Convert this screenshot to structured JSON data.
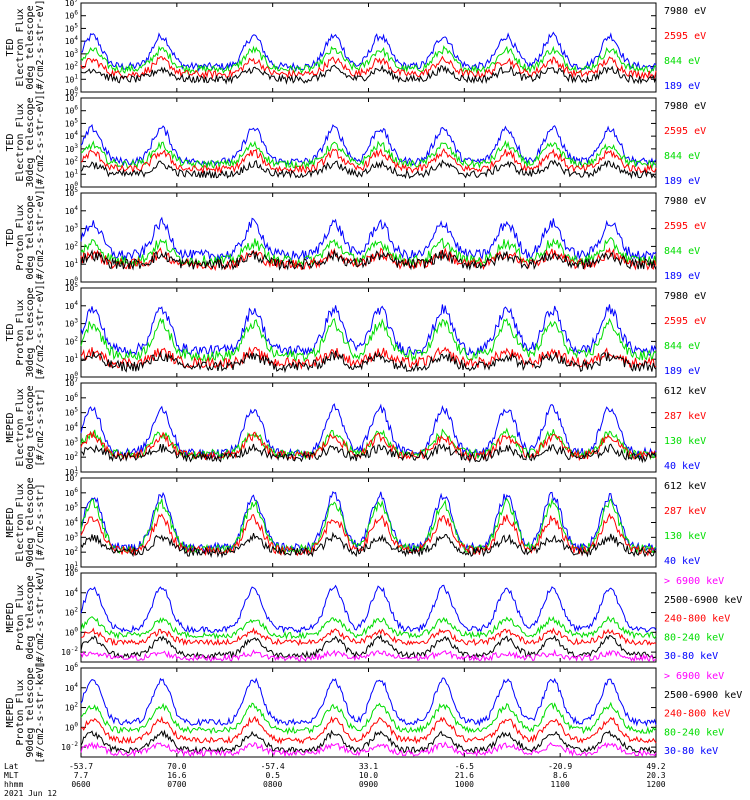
{
  "chart_data": {
    "type": "line",
    "date_label": "2021 Jun 12",
    "x_axis": {
      "row_labels": [
        "Lat",
        "MLT",
        "hhmm"
      ],
      "ticks": [
        {
          "lat": "-53.7",
          "mlt": "7.7",
          "hhmm": "0600"
        },
        {
          "lat": "70.0",
          "mlt": "16.6",
          "hhmm": "0700"
        },
        {
          "lat": "-57.4",
          "mlt": "0.5",
          "hhmm": "0800"
        },
        {
          "lat": "33.1",
          "mlt": "10.0",
          "hhmm": "0900"
        },
        {
          "lat": "-6.5",
          "mlt": "21.6",
          "hhmm": "1000"
        },
        {
          "lat": "-20.9",
          "mlt": "8.6",
          "hhmm": "1100"
        },
        {
          "lat": "49.2",
          "mlt": "20.3",
          "hhmm": "1200"
        }
      ]
    },
    "panels": [
      {
        "ylabel": [
          "TED",
          "Electron Flux",
          "0deg telescope",
          "[#/cm2-s-str-eV]"
        ],
        "ymin_exp": 0,
        "ymax_exp": 7,
        "ticks": [
          "10^0",
          "10^1",
          "10^2",
          "10^3",
          "10^4",
          "10^5",
          "10^6",
          "10^7"
        ],
        "legend": [
          {
            "text": "7980 eV",
            "color": "#000000"
          },
          {
            "text": "2595 eV",
            "color": "#ff0000"
          },
          {
            "text": "844 eV",
            "color": "#00dd00"
          },
          {
            "text": "189 eV",
            "color": "#0000ff"
          }
        ],
        "series_levels": [
          [
            1,
            1.8
          ],
          [
            1.4,
            2.5
          ],
          [
            1.8,
            3.3
          ],
          [
            2,
            4.4
          ]
        ]
      },
      {
        "ylabel": [
          "TED",
          "Electron Flux",
          "30deg telescope",
          "[#/cm2-s-str-eV]"
        ],
        "ymin_exp": 0,
        "ymax_exp": 7,
        "ticks": [
          "10^0",
          "10^1",
          "10^2",
          "10^3",
          "10^4",
          "10^5",
          "10^6",
          "10^7"
        ],
        "legend": [
          {
            "text": "7980 eV",
            "color": "#000000"
          },
          {
            "text": "2595 eV",
            "color": "#ff0000"
          },
          {
            "text": "844 eV",
            "color": "#00dd00"
          },
          {
            "text": "189 eV",
            "color": "#0000ff"
          }
        ],
        "series_levels": [
          [
            1,
            1.8
          ],
          [
            1.4,
            2.7
          ],
          [
            1.8,
            3.3
          ],
          [
            2,
            4.6
          ]
        ]
      },
      {
        "ylabel": [
          "TED",
          "Proton Flux",
          "0deg telescope",
          "[#/cm2-s-str-eV]"
        ],
        "ymin_exp": 0,
        "ymax_exp": 5,
        "ticks": [
          "10^0",
          "10^1",
          "10^2",
          "10^3",
          "10^4",
          "10^5"
        ],
        "legend": [
          {
            "text": "7980 eV",
            "color": "#000000"
          },
          {
            "text": "2595 eV",
            "color": "#ff0000"
          },
          {
            "text": "844 eV",
            "color": "#00dd00"
          },
          {
            "text": "189 eV",
            "color": "#0000ff"
          }
        ],
        "series_levels": [
          [
            1,
            1.5
          ],
          [
            1,
            1.6
          ],
          [
            1.2,
            2.2
          ],
          [
            1.5,
            3.3
          ]
        ]
      },
      {
        "ylabel": [
          "TED",
          "Proton Flux",
          "30deg telescope",
          "[#/cm2-s-str-eV]"
        ],
        "ymin_exp": 0,
        "ymax_exp": 5,
        "ticks": [
          "10^0",
          "10^1",
          "10^2",
          "10^3",
          "10^4",
          "10^5"
        ],
        "legend": [
          {
            "text": "7980 eV",
            "color": "#000000"
          },
          {
            "text": "2595 eV",
            "color": "#ff0000"
          },
          {
            "text": "844 eV",
            "color": "#00dd00"
          },
          {
            "text": "189 eV",
            "color": "#0000ff"
          }
        ],
        "series_levels": [
          [
            0.6,
            1.2
          ],
          [
            0.8,
            1.4
          ],
          [
            1.2,
            3.0
          ],
          [
            1.5,
            3.8
          ]
        ]
      },
      {
        "ylabel": [
          "MEPED",
          "Electron Flux",
          "0deg telescope",
          "[#/cm2-s-str]"
        ],
        "ymin_exp": 1,
        "ymax_exp": 7,
        "ticks": [
          "10^1",
          "10^2",
          "10^3",
          "10^4",
          "10^5",
          "10^6",
          "10^7"
        ],
        "legend": [
          {
            "text": "612 keV",
            "color": "#000000"
          },
          {
            "text": "287 keV",
            "color": "#ff0000"
          },
          {
            "text": "130 keV",
            "color": "#00dd00"
          },
          {
            "text": "40 keV",
            "color": "#0000ff"
          }
        ],
        "series_levels": [
          [
            2,
            2.6
          ],
          [
            2.1,
            3.4
          ],
          [
            2.2,
            3.6
          ],
          [
            2.3,
            5.3
          ]
        ]
      },
      {
        "ylabel": [
          "MEPED",
          "Electron Flux",
          "90deg telescope",
          "[#/cm2-s-str]"
        ],
        "ymin_exp": 1,
        "ymax_exp": 7,
        "ticks": [
          "10^1",
          "10^2",
          "10^3",
          "10^4",
          "10^5",
          "10^6",
          "10^7"
        ],
        "legend": [
          {
            "text": "612 keV",
            "color": "#000000"
          },
          {
            "text": "287 keV",
            "color": "#ff0000"
          },
          {
            "text": "130 keV",
            "color": "#00dd00"
          },
          {
            "text": "40 keV",
            "color": "#0000ff"
          }
        ],
        "series_levels": [
          [
            2,
            3.0
          ],
          [
            2.1,
            4.3
          ],
          [
            2.2,
            5.3
          ],
          [
            2.3,
            5.8
          ]
        ]
      },
      {
        "ylabel": [
          "MEPED",
          "Proton Flux",
          "0deg telescope",
          "[#/cm2-s-str-keV]"
        ],
        "ymin_exp": -3,
        "ymax_exp": 6,
        "ticks": [
          "10^-2",
          "10^0",
          "10^2",
          "10^4",
          "10^6"
        ],
        "legend": [
          {
            "text": "> 6900 keV",
            "color": "#ff00ff"
          },
          {
            "text": "2500-6900 keV",
            "color": "#000000"
          },
          {
            "text": "240-800 keV",
            "color": "#ff0000"
          },
          {
            "text": "80-240 keV",
            "color": "#00dd00"
          },
          {
            "text": "30-80 keV",
            "color": "#0000ff"
          }
        ],
        "series_levels": [
          [
            -2.6,
            -2.1
          ],
          [
            -2.3,
            -0.6
          ],
          [
            -1,
            0.1
          ],
          [
            -0.3,
            1.3
          ],
          [
            0.3,
            4.5
          ]
        ]
      },
      {
        "ylabel": [
          "MEPED",
          "Proton Flux",
          "90deg telescope",
          "[#/cm2-s-str-keV]"
        ],
        "ymin_exp": -3,
        "ymax_exp": 6,
        "ticks": [
          "10^-2",
          "10^0",
          "10^2",
          "10^4",
          "10^6"
        ],
        "legend": [
          {
            "text": "> 6900 keV",
            "color": "#ff00ff"
          },
          {
            "text": "2500-6900 keV",
            "color": "#000000"
          },
          {
            "text": "240-800 keV",
            "color": "#ff0000"
          },
          {
            "text": "80-240 keV",
            "color": "#00dd00"
          },
          {
            "text": "30-80 keV",
            "color": "#0000ff"
          }
        ],
        "series_levels": [
          [
            -2.6,
            -1.8
          ],
          [
            -2.3,
            -0.6
          ],
          [
            -1.3,
            0.8
          ],
          [
            -0.3,
            2.2
          ],
          [
            0.5,
            4.8
          ]
        ]
      }
    ]
  }
}
